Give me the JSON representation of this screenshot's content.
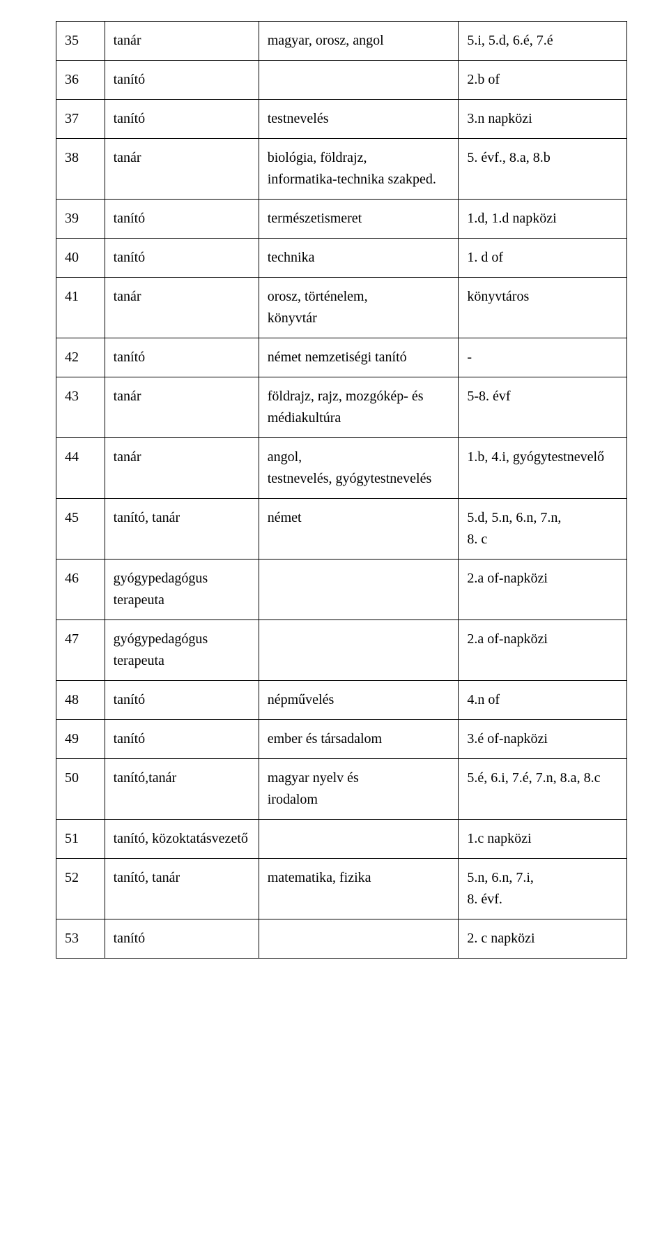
{
  "rows": [
    {
      "n": "35",
      "role": "tanár",
      "subj": "magyar, orosz, angol",
      "note": "5.i, 5.d, 6.é, 7.é"
    },
    {
      "n": "36",
      "role": "tanító",
      "subj": "",
      "note": "2.b of"
    },
    {
      "n": "37",
      "role": "tanító",
      "subj": "testnevelés",
      "note": "3.n napközi"
    },
    {
      "n": "38",
      "role": "tanár",
      "subj": "biológia, földrajz,\ninformatika-technika szakped.",
      "note": "5. évf., 8.a, 8.b"
    },
    {
      "n": "39",
      "role": "tanító",
      "subj": "természetismeret",
      "note": "1.d, 1.d napközi"
    },
    {
      "n": "40",
      "role": "tanító",
      "subj": "technika",
      "note": "1. d of"
    },
    {
      "n": "41",
      "role": "tanár",
      "subj": "orosz, történelem,\nkönyvtár",
      "note": "könyvtáros"
    },
    {
      "n": "42",
      "role": "tanító",
      "subj": "német nemzetiségi tanító",
      "note": "-"
    },
    {
      "n": "43",
      "role": "tanár",
      "subj": "földrajz, rajz, mozgókép- és médiakultúra",
      "note": "5-8. évf"
    },
    {
      "n": "44",
      "role": "tanár",
      "subj": "angol,\ntestnevelés, gyógytestnevelés",
      "note": "1.b, 4.i, gyógytestnevelő"
    },
    {
      "n": "45",
      "role": "tanító, tanár",
      "subj": "német",
      "note": "5.d, 5.n, 6.n, 7.n,\n8. c"
    },
    {
      "n": "46",
      "role": "gyógypedagógus\nterapeuta",
      "subj": "",
      "note": "2.a of-napközi"
    },
    {
      "n": "47",
      "role": "gyógypedagógus\nterapeuta",
      "subj": "",
      "note": "2.a of-napközi"
    },
    {
      "n": "48",
      "role": "tanító",
      "subj": "népművelés",
      "note": "4.n of"
    },
    {
      "n": "49",
      "role": "tanító",
      "subj": "ember és társadalom",
      "note": "3.é of-napközi"
    },
    {
      "n": "50",
      "role": "tanító,tanár",
      "subj": "magyar nyelv és\nirodalom",
      "note": "5.é, 6.i, 7.é, 7.n, 8.a, 8.c"
    },
    {
      "n": "51",
      "role": "tanító, közoktatásvezető",
      "subj": "",
      "note": "1.c napközi"
    },
    {
      "n": "52",
      "role": "tanító, tanár",
      "subj": "matematika, fizika",
      "note": "5.n, 6.n, 7.i,\n8. évf."
    },
    {
      "n": "53",
      "role": "tanító",
      "subj": "",
      "note": "2. c napközi"
    }
  ],
  "style": {
    "font_family": "Times New Roman",
    "font_size_pt": 15,
    "border_color": "#000000",
    "background_color": "#ffffff",
    "text_color": "#000000",
    "col_widths_pct": [
      8.5,
      27,
      35,
      29.5
    ]
  }
}
